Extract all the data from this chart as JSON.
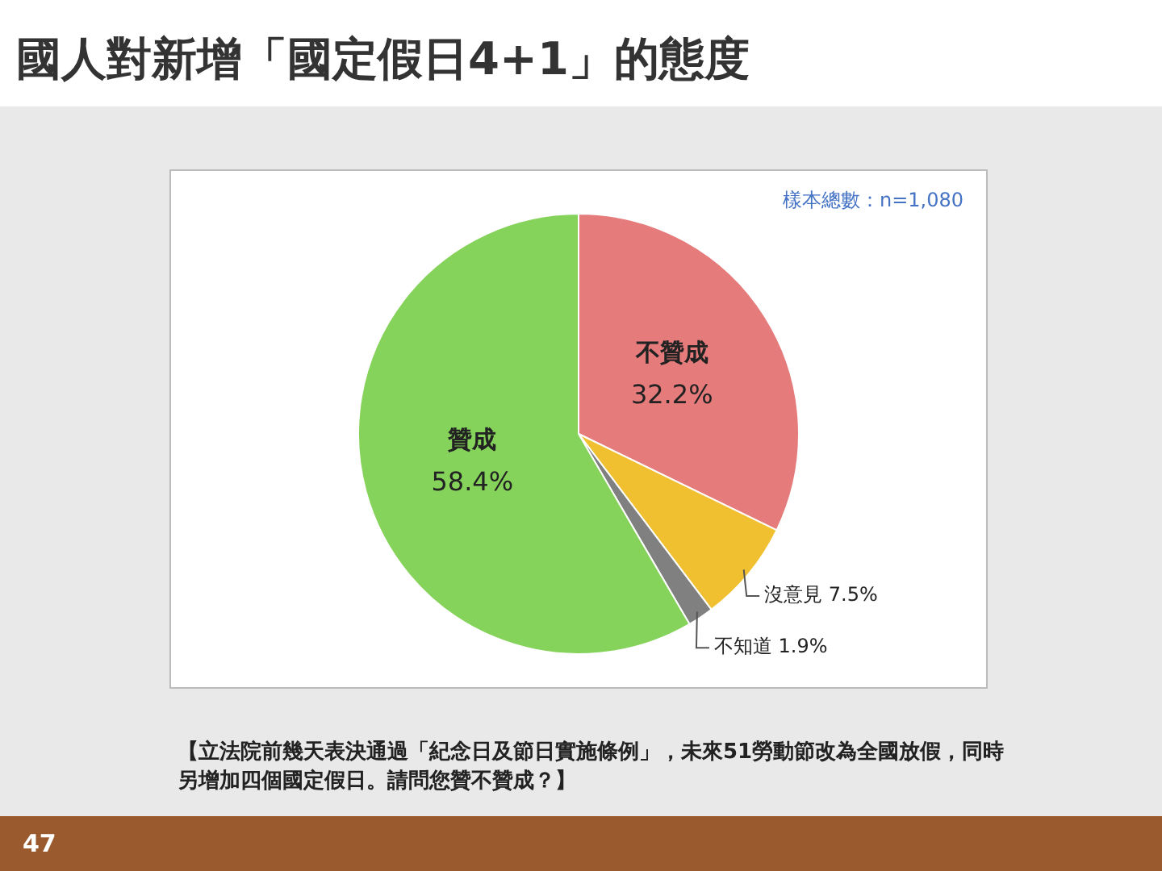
{
  "chart_data": {
    "type": "pie",
    "title": "國人對新增「國定假日4+1」的態度",
    "categories": [
      "不贊成",
      "沒意見",
      "不知道",
      "贊成"
    ],
    "values": [
      32.2,
      7.5,
      1.9,
      58.4
    ],
    "colors": [
      "#e57b7b",
      "#f0c030",
      "#808080",
      "#85d35a"
    ],
    "value_labels": [
      "32.2%",
      "7.5%",
      "1.9%",
      "58.4%"
    ],
    "legend": false,
    "annotations": [
      "樣本總數：n=1,080",
      "【立法院前幾天表決通過「紀念日及節日實施條例」，未來51勞動節改為全國放假，同時另增加四個國定假日。請問您贊不贊成？】",
      "47"
    ]
  }
}
